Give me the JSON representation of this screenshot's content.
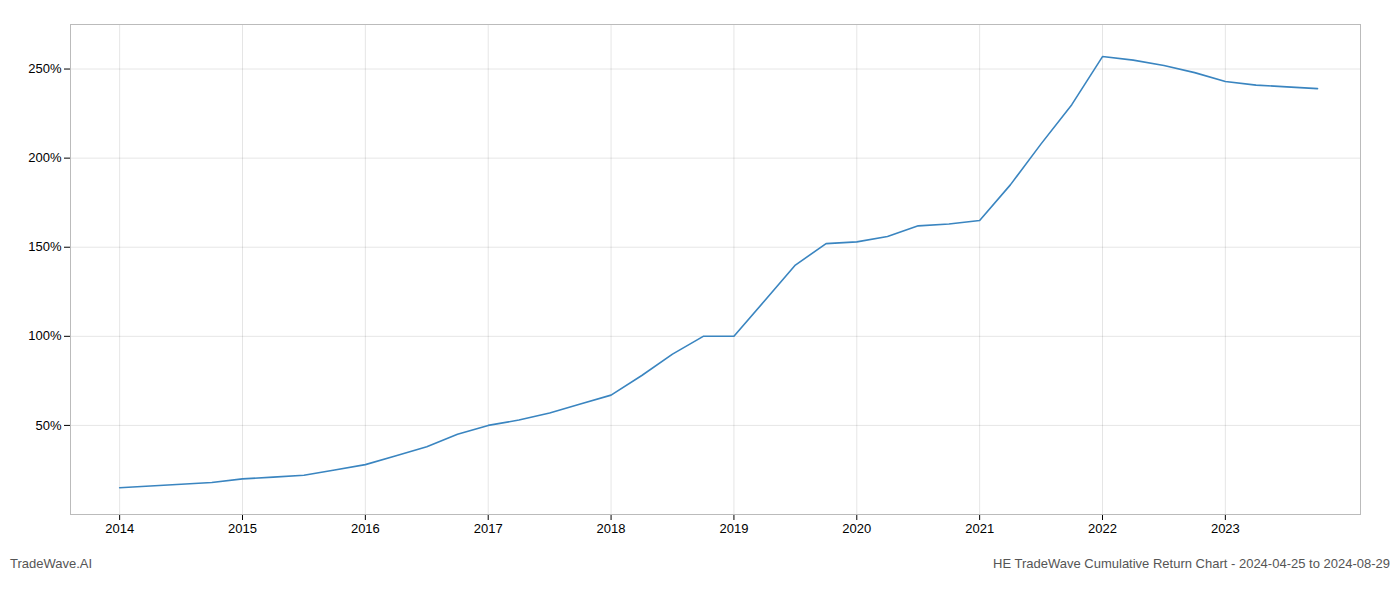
{
  "chart_data": {
    "type": "line",
    "x": [
      2014.0,
      2014.25,
      2014.5,
      2014.75,
      2015.0,
      2015.25,
      2015.5,
      2015.75,
      2016.0,
      2016.25,
      2016.5,
      2016.75,
      2017.0,
      2017.25,
      2017.5,
      2017.75,
      2018.0,
      2018.25,
      2018.5,
      2018.75,
      2019.0,
      2019.25,
      2019.5,
      2019.75,
      2020.0,
      2020.25,
      2020.5,
      2020.75,
      2021.0,
      2021.25,
      2021.5,
      2021.75,
      2022.0,
      2022.25,
      2022.5,
      2022.75,
      2023.0,
      2023.25,
      2023.5,
      2023.75
    ],
    "values": [
      15,
      16,
      17,
      18,
      20,
      21,
      22,
      25,
      28,
      33,
      38,
      45,
      50,
      53,
      57,
      62,
      67,
      78,
      90,
      100,
      100,
      120,
      140,
      152,
      153,
      156,
      162,
      163,
      165,
      185,
      208,
      230,
      257,
      255,
      252,
      248,
      243,
      241,
      240,
      239
    ],
    "color": "#3a85c0",
    "xlim": [
      2013.6,
      2024.1
    ],
    "ylim": [
      0,
      275
    ],
    "xticks": [
      2014,
      2015,
      2016,
      2017,
      2018,
      2019,
      2020,
      2021,
      2022,
      2023
    ],
    "yticks": [
      {
        "value": 50,
        "label": "50%"
      },
      {
        "value": 100,
        "label": "100%"
      },
      {
        "value": 150,
        "label": "150%"
      },
      {
        "value": 200,
        "label": "200%"
      },
      {
        "value": 250,
        "label": "250%"
      }
    ],
    "grid": true,
    "annotations": [
      "TradeWave.AI",
      "HE TradeWave Cumulative Return Chart - 2024-04-25 to 2024-08-29"
    ]
  }
}
